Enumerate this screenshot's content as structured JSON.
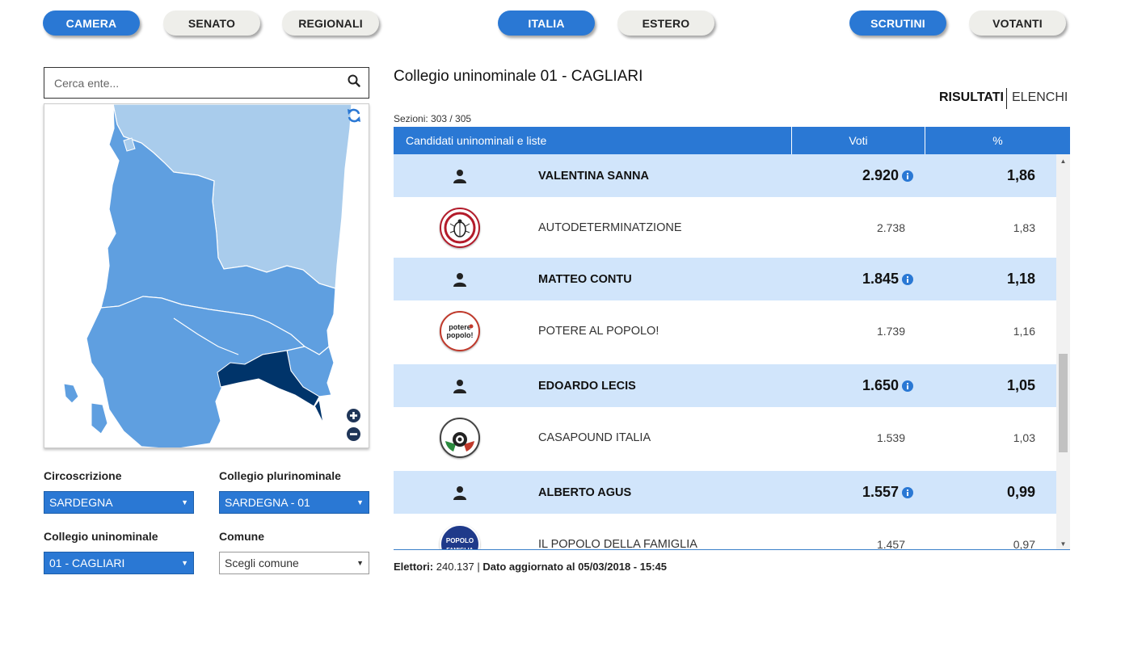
{
  "nav": {
    "camera": "CAMERA",
    "senato": "SENATO",
    "regionali": "REGIONALI",
    "italia": "ITALIA",
    "estero": "ESTERO",
    "scrutini": "SCRUTINI",
    "votanti": "VOTANTI"
  },
  "search": {
    "placeholder": "Cerca ente..."
  },
  "filters": {
    "circoscrizione_label": "Circoscrizione",
    "circoscrizione_value": "SARDEGNA",
    "plurinominale_label": "Collegio plurinominale",
    "plurinominale_value": "SARDEGNA - 01",
    "uninominale_label": "Collegio uninominale",
    "uninominale_value": "01 - CAGLIARI",
    "comune_label": "Comune",
    "comune_value": "Scegli comune"
  },
  "main": {
    "title": "Collegio uninominale 01 - CAGLIARI",
    "toggle_results": "RISULTATI",
    "toggle_lists": "ELENCHI",
    "sezioni": "Sezioni: 303 / 305"
  },
  "table": {
    "headers": [
      "Candidati uninominali e liste",
      "Voti",
      "%"
    ],
    "rows": [
      {
        "type": "candidate",
        "name": "VALENTINA SANNA",
        "votes": "2.920",
        "pct": "1,86"
      },
      {
        "type": "list",
        "logo": "AUTODETERMINATZIONE",
        "name": "AUTODETERMINATZIONE",
        "votes": "2.738",
        "pct": "1,83"
      },
      {
        "type": "candidate",
        "name": "MATTEO CONTU",
        "votes": "1.845",
        "pct": "1,18"
      },
      {
        "type": "list",
        "logo": "potere al popolo!",
        "name": "POTERE AL POPOLO!",
        "votes": "1.739",
        "pct": "1,16"
      },
      {
        "type": "candidate",
        "name": "EDOARDO LECIS",
        "votes": "1.650",
        "pct": "1,05"
      },
      {
        "type": "list",
        "logo": "CASAPOUND ITALIA",
        "name": "CASAPOUND ITALIA",
        "votes": "1.539",
        "pct": "1,03"
      },
      {
        "type": "candidate",
        "name": "ALBERTO AGUS",
        "votes": "1.557",
        "pct": "0,99"
      },
      {
        "type": "list",
        "logo": "IL POPOLO DELLA FAMIGLIA",
        "name": "IL POPOLO DELLA FAMIGLIA",
        "votes": "1.457",
        "pct": "0,97"
      }
    ]
  },
  "footer": {
    "elettori_label": "Elettori:",
    "elettori_value": "240.137",
    "separator": "|",
    "updated": "Dato aggiornato al 05/03/2018 - 15:45"
  },
  "colors": {
    "accent": "#2a78d4",
    "candidate_row": "#d1e5fb",
    "map_light": "#a9ccec",
    "map_mid": "#5f9fe0",
    "map_selected": "#00346a"
  },
  "icons": [
    "search-icon",
    "refresh-icon",
    "zoom-in-icon",
    "zoom-out-icon",
    "person-icon",
    "info-icon"
  ]
}
